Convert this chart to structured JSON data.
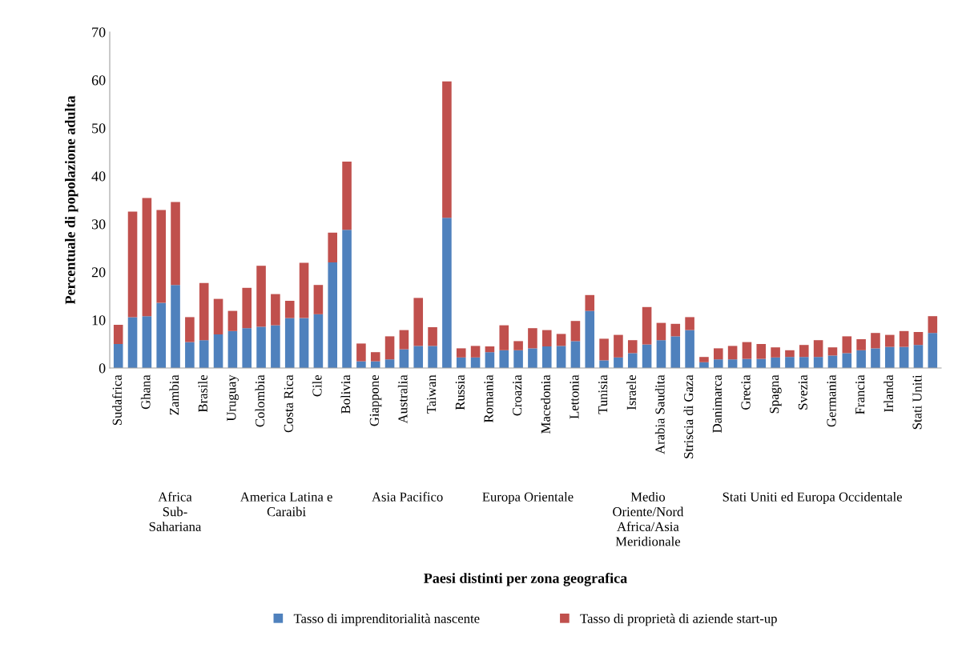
{
  "chart_data": {
    "type": "bar",
    "stacked": true,
    "ylabel": "Percentuale di popolazione adulta",
    "categories": [
      "Sudafrica",
      null,
      "Ghana",
      null,
      "Zambia",
      null,
      "Brasile",
      null,
      "Uruguay",
      null,
      "Colombia",
      null,
      "Costa Rica",
      null,
      "Cile",
      null,
      "Bolivia",
      null,
      "Giappone",
      null,
      "Australia",
      null,
      "Taiwan",
      null,
      "Russia",
      null,
      "Romania",
      null,
      "Croazia",
      null,
      "Macedonia",
      null,
      "Lettonia",
      null,
      "Tunisia",
      null,
      "Israele",
      null,
      "Arabia Saudita",
      null,
      "Striscia di Gaza",
      null,
      "Danimarca",
      null,
      "Grecia",
      null,
      "Spagna",
      null,
      "Svezia",
      null,
      "Germania",
      null,
      "Francia",
      null,
      "Irlanda",
      null,
      "Stati Uniti",
      null
    ],
    "series": [
      {
        "name": "Tasso di imprenditorialità nascente",
        "color": "#4f81bd",
        "values": [
          5.0,
          10.6,
          10.8,
          13.6,
          17.3,
          5.4,
          5.8,
          7.0,
          7.7,
          8.3,
          8.6,
          8.9,
          10.4,
          10.4,
          11.2,
          22.0,
          28.8,
          1.4,
          1.4,
          1.8,
          3.9,
          4.6,
          4.6,
          31.3,
          2.2,
          2.2,
          3.3,
          3.7,
          3.7,
          4.1,
          4.5,
          4.6,
          5.6,
          11.9,
          1.6,
          2.2,
          3.1,
          4.9,
          5.8,
          6.6,
          7.9,
          1.2,
          1.8,
          1.8,
          1.9,
          1.9,
          2.2,
          2.3,
          2.3,
          2.3,
          2.6,
          3.1,
          3.7,
          4.1,
          4.4,
          4.4,
          4.8,
          7.3
        ]
      },
      {
        "name": "Tasso di proprietà di aziende start-up",
        "color": "#c0504d",
        "values": [
          4.0,
          22.0,
          24.6,
          19.3,
          17.3,
          5.2,
          11.9,
          7.4,
          4.2,
          8.4,
          12.7,
          6.5,
          3.6,
          11.5,
          6.1,
          6.2,
          14.2,
          3.7,
          1.9,
          4.8,
          4.0,
          10.0,
          3.9,
          28.4,
          1.9,
          2.4,
          1.2,
          5.2,
          1.9,
          4.2,
          3.4,
          2.5,
          4.2,
          3.3,
          4.5,
          4.7,
          2.7,
          7.8,
          3.6,
          2.6,
          2.7,
          1.1,
          2.3,
          2.8,
          3.5,
          3.1,
          2.1,
          1.4,
          2.5,
          3.5,
          1.7,
          3.5,
          2.3,
          3.2,
          2.5,
          3.3,
          2.7,
          3.5
        ]
      }
    ],
    "ylim": [
      0,
      70
    ],
    "yticks": [
      0,
      10,
      20,
      30,
      40,
      50,
      60,
      70
    ],
    "legend": "bottom",
    "annotations": [
      "Africa\nSub-\nSahariana",
      "America Latina e\nCaraibi",
      "Asia Pacifico",
      "Europa Orientale",
      "Medio\nOriente/Nord\nAfrica/Asia\nMeridionale",
      "Stati Uniti ed Europa Occidentale",
      "Paesi distinti per zona geografica"
    ]
  }
}
